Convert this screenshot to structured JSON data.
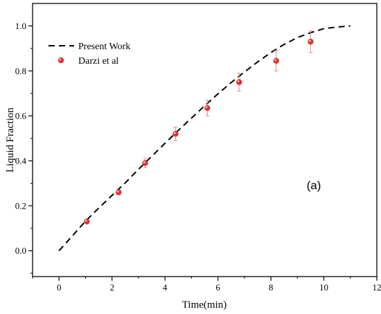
{
  "chart_data": {
    "type": "line",
    "xlabel": "Time(min)",
    "ylabel": "Liquid Fraction",
    "xlim": [
      -1,
      12
    ],
    "ylim": [
      -0.115,
      1.1
    ],
    "xticks": [
      0,
      2,
      4,
      6,
      8,
      10,
      12
    ],
    "xtick_labels": [
      "0",
      "2",
      "4",
      "6",
      "8",
      "10",
      "12"
    ],
    "yticks": [
      0.0,
      0.2,
      0.4,
      0.6,
      0.8,
      1.0
    ],
    "ytick_labels": [
      "0.0",
      "0.2",
      "0.4",
      "0.6",
      "0.8",
      "1.0"
    ],
    "annotation": "(a)",
    "legend_position": "top-left",
    "grid": false,
    "series": [
      {
        "name": "Present Work",
        "style": "dashed-line",
        "color": "#000000",
        "x": [
          0,
          0.5,
          1,
          1.5,
          2,
          2.5,
          3,
          3.5,
          4,
          4.5,
          5,
          5.5,
          6,
          6.5,
          7,
          7.5,
          8,
          8.5,
          9,
          9.5,
          10,
          10.5,
          11
        ],
        "y": [
          0.0,
          0.065,
          0.132,
          0.19,
          0.246,
          0.302,
          0.362,
          0.42,
          0.478,
          0.535,
          0.59,
          0.645,
          0.698,
          0.748,
          0.795,
          0.84,
          0.882,
          0.918,
          0.948,
          0.97,
          0.988,
          0.995,
          1.0
        ]
      },
      {
        "name": "Darzi et al",
        "style": "markers-with-errorbars",
        "color": "#e03030",
        "x": [
          1.05,
          2.25,
          3.25,
          4.4,
          5.6,
          6.8,
          8.2,
          9.5
        ],
        "y": [
          0.13,
          0.26,
          0.39,
          0.52,
          0.635,
          0.75,
          0.845,
          0.93
        ],
        "error": [
          0.0,
          0.01,
          0.02,
          0.03,
          0.035,
          0.04,
          0.045,
          0.048
        ]
      }
    ]
  }
}
